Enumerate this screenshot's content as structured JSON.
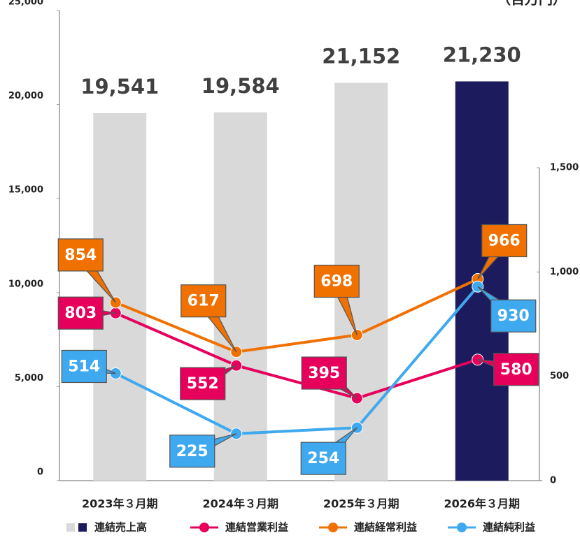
{
  "chart_data": {
    "type": "bar",
    "unit_label": "（百万円）",
    "categories": [
      "2023年３月期",
      "2024年３月期",
      "2025年３月期",
      "2026年３月期"
    ],
    "series": [
      {
        "name": "連結売上高",
        "type": "bar",
        "colors": [
          "#d9d9d9",
          "#d9d9d9",
          "#d9d9d9",
          "#1b1b5e"
        ],
        "values": [
          19541,
          19584,
          21152,
          21230
        ],
        "value_labels": [
          "19,541",
          "19,584",
          "21,152",
          "21,230"
        ]
      },
      {
        "name": "連結営業利益",
        "type": "line",
        "axis": "y2",
        "color": "#e6005c",
        "values": [
          803,
          552,
          395,
          580
        ]
      },
      {
        "name": "連結経常利益",
        "type": "line",
        "axis": "y2",
        "color": "#f07000",
        "values": [
          854,
          617,
          698,
          966
        ]
      },
      {
        "name": "連結純利益",
        "type": "line",
        "axis": "y2",
        "color": "#3fa9ef",
        "values": [
          514,
          225,
          254,
          930
        ]
      }
    ],
    "ylim": [
      0,
      25000
    ],
    "yticks": [
      0,
      {
        "value": 5000,
        "label": "5,000"
      },
      {
        "value": 10000,
        "label": "10,000"
      },
      {
        "value": 15000,
        "label": "15,000"
      },
      {
        "value": 20000,
        "label": "20,000"
      },
      {
        "value": 25000,
        "label": "25,000"
      }
    ],
    "y2lim": [
      0,
      1500
    ],
    "y2ticks": [
      0,
      500,
      {
        "value": 1000,
        "label": "1,000"
      },
      {
        "value": 1500,
        "label": "1,500"
      }
    ]
  }
}
